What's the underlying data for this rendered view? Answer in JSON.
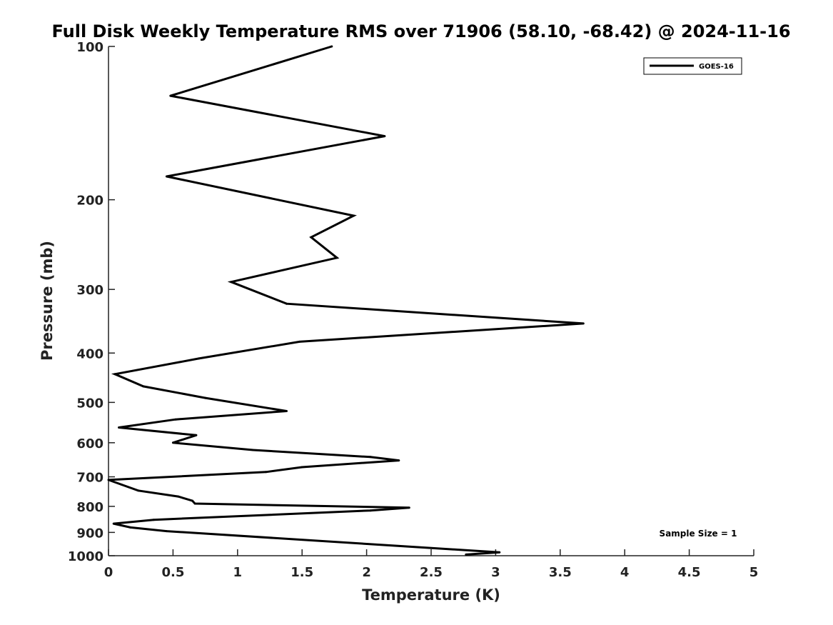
{
  "chart_data": {
    "type": "line",
    "title": "Full Disk Weekly Temperature RMS over 71906 (58.10, -68.42) @ 2024-11-16",
    "xlabel": "Temperature (K)",
    "ylabel": "Pressure (mb)",
    "xlim": [
      0,
      5
    ],
    "ylim": [
      100,
      1000
    ],
    "y_scale": "log",
    "y_reversed": true,
    "x_ticks": [
      "0",
      "0.5",
      "1",
      "1.5",
      "2",
      "2.5",
      "3",
      "3.5",
      "4",
      "4.5",
      "5"
    ],
    "y_ticks": [
      "100",
      "200",
      "300",
      "400",
      "500",
      "600",
      "700",
      "800",
      "900",
      "1000"
    ],
    "grid": false,
    "legend_position": "top-right",
    "series": [
      {
        "name": "GOES-16",
        "color": "#000000",
        "points": [
          {
            "x": 1.73,
            "y": 100
          },
          {
            "x": 0.48,
            "y": 125
          },
          {
            "x": 2.14,
            "y": 150
          },
          {
            "x": 0.45,
            "y": 180
          },
          {
            "x": 1.9,
            "y": 215
          },
          {
            "x": 1.57,
            "y": 237
          },
          {
            "x": 1.77,
            "y": 260
          },
          {
            "x": 0.95,
            "y": 290
          },
          {
            "x": 1.38,
            "y": 320
          },
          {
            "x": 3.68,
            "y": 350
          },
          {
            "x": 1.48,
            "y": 380
          },
          {
            "x": 0.7,
            "y": 410
          },
          {
            "x": 0.05,
            "y": 440
          },
          {
            "x": 0.27,
            "y": 465
          },
          {
            "x": 0.75,
            "y": 490
          },
          {
            "x": 1.38,
            "y": 520
          },
          {
            "x": 0.52,
            "y": 540
          },
          {
            "x": 0.08,
            "y": 560
          },
          {
            "x": 0.68,
            "y": 580
          },
          {
            "x": 0.5,
            "y": 600
          },
          {
            "x": 1.12,
            "y": 620
          },
          {
            "x": 2.03,
            "y": 640
          },
          {
            "x": 2.25,
            "y": 650
          },
          {
            "x": 1.5,
            "y": 670
          },
          {
            "x": 1.22,
            "y": 685
          },
          {
            "x": 0.0,
            "y": 710
          },
          {
            "x": 0.1,
            "y": 725
          },
          {
            "x": 0.23,
            "y": 745
          },
          {
            "x": 0.54,
            "y": 765
          },
          {
            "x": 0.65,
            "y": 780
          },
          {
            "x": 0.67,
            "y": 790
          },
          {
            "x": 2.33,
            "y": 805
          },
          {
            "x": 2.03,
            "y": 815
          },
          {
            "x": 0.35,
            "y": 850
          },
          {
            "x": 0.04,
            "y": 865
          },
          {
            "x": 0.17,
            "y": 880
          },
          {
            "x": 0.45,
            "y": 895
          },
          {
            "x": 3.03,
            "y": 985
          },
          {
            "x": 2.77,
            "y": 995
          }
        ]
      }
    ],
    "annotations": [
      "Sample Size = 1"
    ]
  }
}
